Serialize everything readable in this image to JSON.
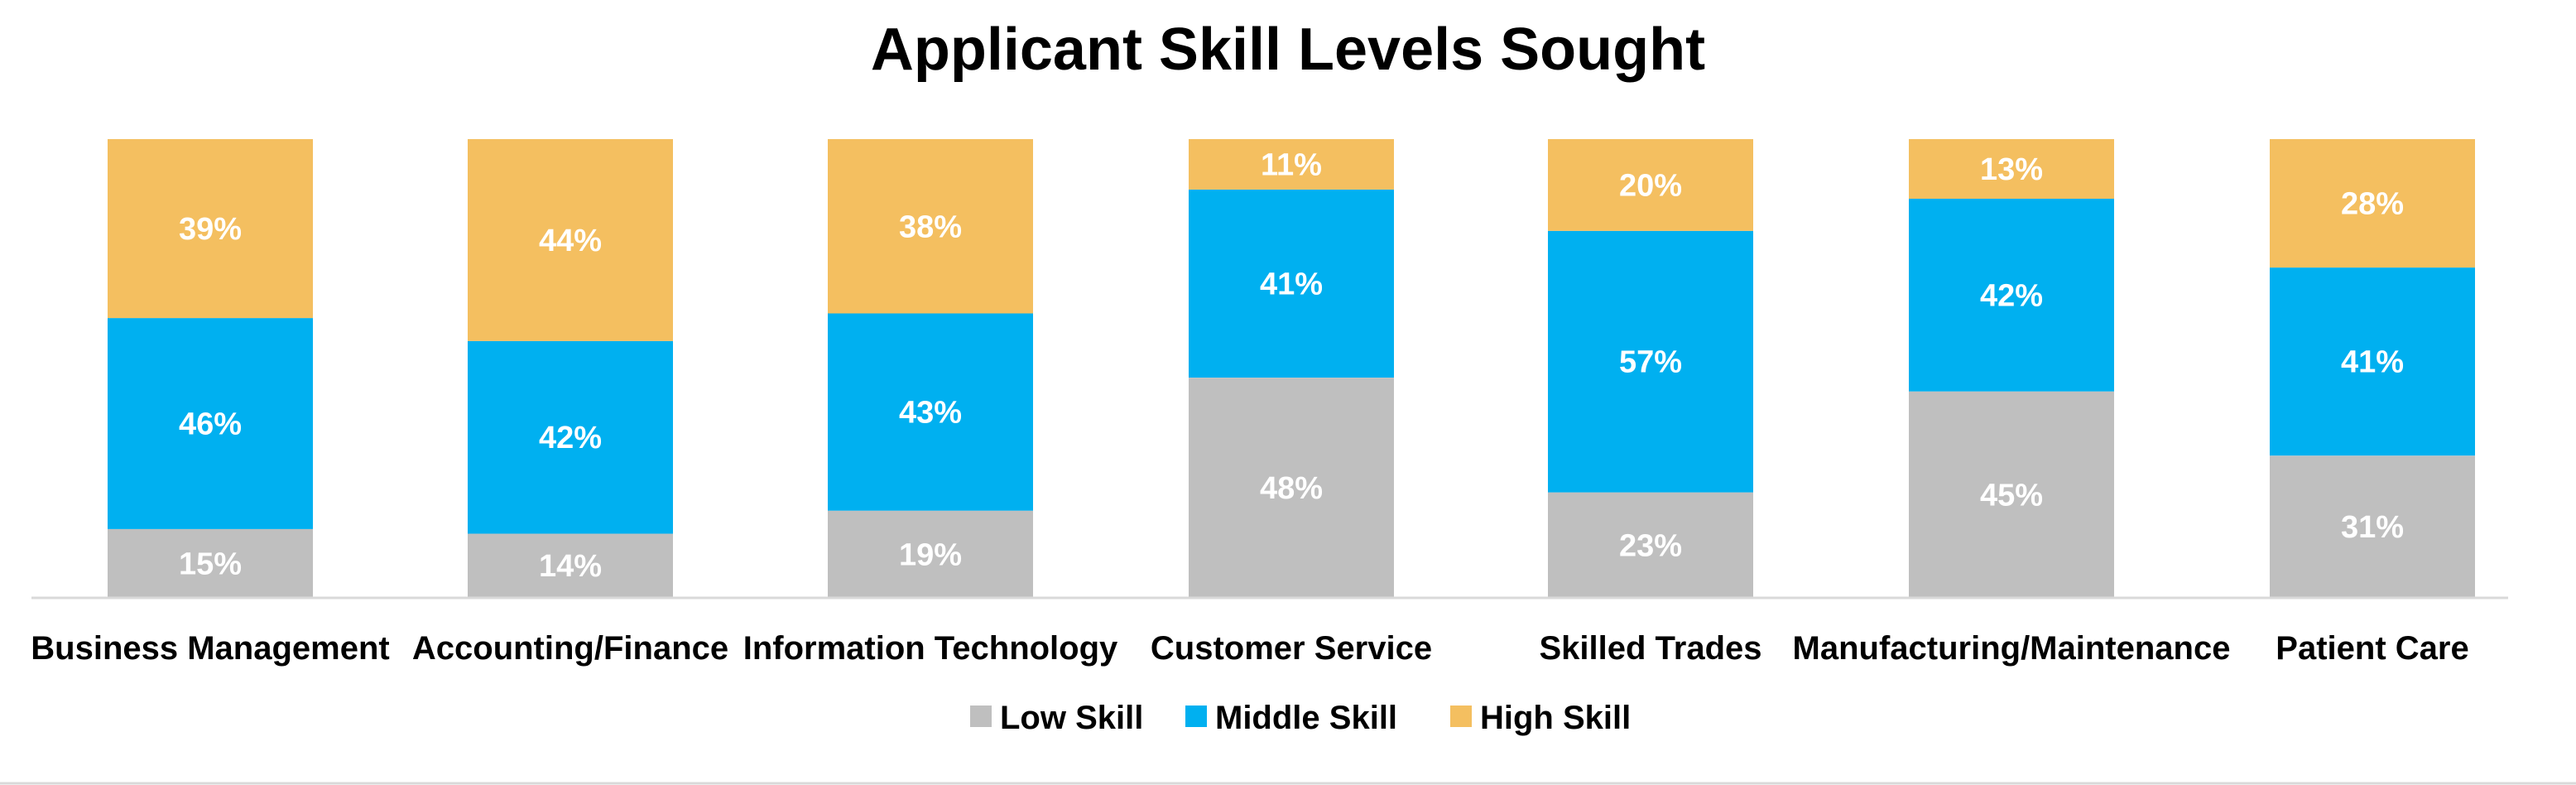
{
  "chart_data": {
    "type": "bar",
    "stacked": true,
    "normalized_percent": true,
    "title": "Applicant Skill Levels Sought",
    "xlabel": "",
    "ylabel": "",
    "ylim": [
      0,
      100
    ],
    "grid": false,
    "legend_position": "bottom",
    "categories": [
      "Business Management",
      "Accounting/Finance",
      "Information Technology",
      "Customer Service",
      "Skilled Trades",
      "Manufacturing/Maintenance",
      "Patient Care"
    ],
    "series": [
      {
        "name": "Low Skill",
        "color": "#BFBFBF",
        "values": [
          15,
          14,
          19,
          48,
          23,
          45,
          31
        ],
        "labels": [
          "15%",
          "14%",
          "19%",
          "48%",
          "23%",
          "45%",
          "31%"
        ]
      },
      {
        "name": "Middle Skill",
        "color": "#00B0F0",
        "values": [
          46,
          42,
          43,
          41,
          57,
          42,
          41
        ],
        "labels": [
          "46%",
          "42%",
          "43%",
          "41%",
          "57%",
          "42%",
          "41%"
        ]
      },
      {
        "name": "High Skill",
        "color": "#F4BF60",
        "values": [
          39,
          44,
          38,
          11,
          20,
          13,
          28
        ],
        "labels": [
          "39%",
          "44%",
          "38%",
          "11%",
          "20%",
          "13%",
          "28%"
        ]
      }
    ]
  },
  "colors": {
    "axis_line": "#D9D9D9",
    "border": "#D9D9D9",
    "label_text": "#FFFFFF",
    "text": "#000000"
  }
}
